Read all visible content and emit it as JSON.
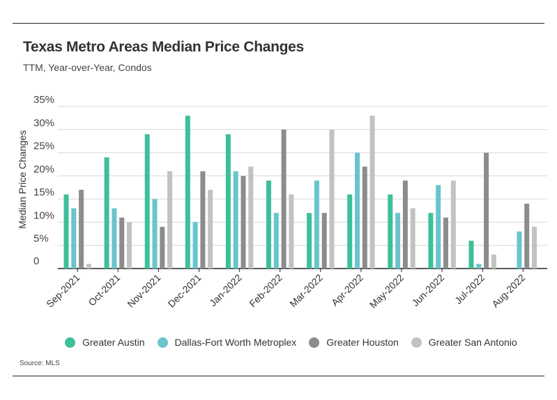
{
  "title": "Texas Metro Areas Median Price Changes",
  "subtitle": "TTM, Year-over-Year, Condos",
  "source": "Source:  MLS",
  "chart_data": {
    "type": "bar",
    "title": "Texas Metro Areas Median Price Changes",
    "subtitle": "TTM, Year-over-Year, Condos",
    "xlabel": "",
    "ylabel": "Median Price Changes",
    "ylim": [
      0,
      35
    ],
    "yticks": [
      0,
      5,
      10,
      15,
      20,
      25,
      30,
      35
    ],
    "ytick_labels": [
      "0",
      "5%",
      "10%",
      "15%",
      "20%",
      "25%",
      "30%",
      "35%"
    ],
    "grid": true,
    "legend_position": "bottom",
    "categories": [
      "Sep-2021",
      "Oct-2021",
      "Nov-2021",
      "Dec-2021",
      "Jan-2022",
      "Feb-2022",
      "Mar-2022",
      "Apr-2022",
      "May-2022",
      "Jun-2022",
      "Jul-2022",
      "Aug-2022"
    ],
    "series": [
      {
        "name": "Greater Austin",
        "color": "#3dbf9b",
        "values": [
          16,
          24,
          29,
          33,
          29,
          19,
          12,
          16,
          16,
          12,
          6,
          0
        ]
      },
      {
        "name": "Dallas-Fort Worth Metroplex",
        "color": "#6ac4cc",
        "values": [
          13,
          13,
          15,
          10,
          21,
          12,
          19,
          25,
          12,
          18,
          1,
          8
        ]
      },
      {
        "name": "Greater Houston",
        "color": "#8c8c8c",
        "values": [
          17,
          11,
          9,
          21,
          20,
          30,
          12,
          22,
          19,
          11,
          25,
          14
        ]
      },
      {
        "name": "Greater San Antonio",
        "color": "#c2c2c2",
        "values": [
          1,
          10,
          21,
          17,
          22,
          16,
          30,
          33,
          13,
          19,
          3,
          9
        ]
      }
    ]
  }
}
